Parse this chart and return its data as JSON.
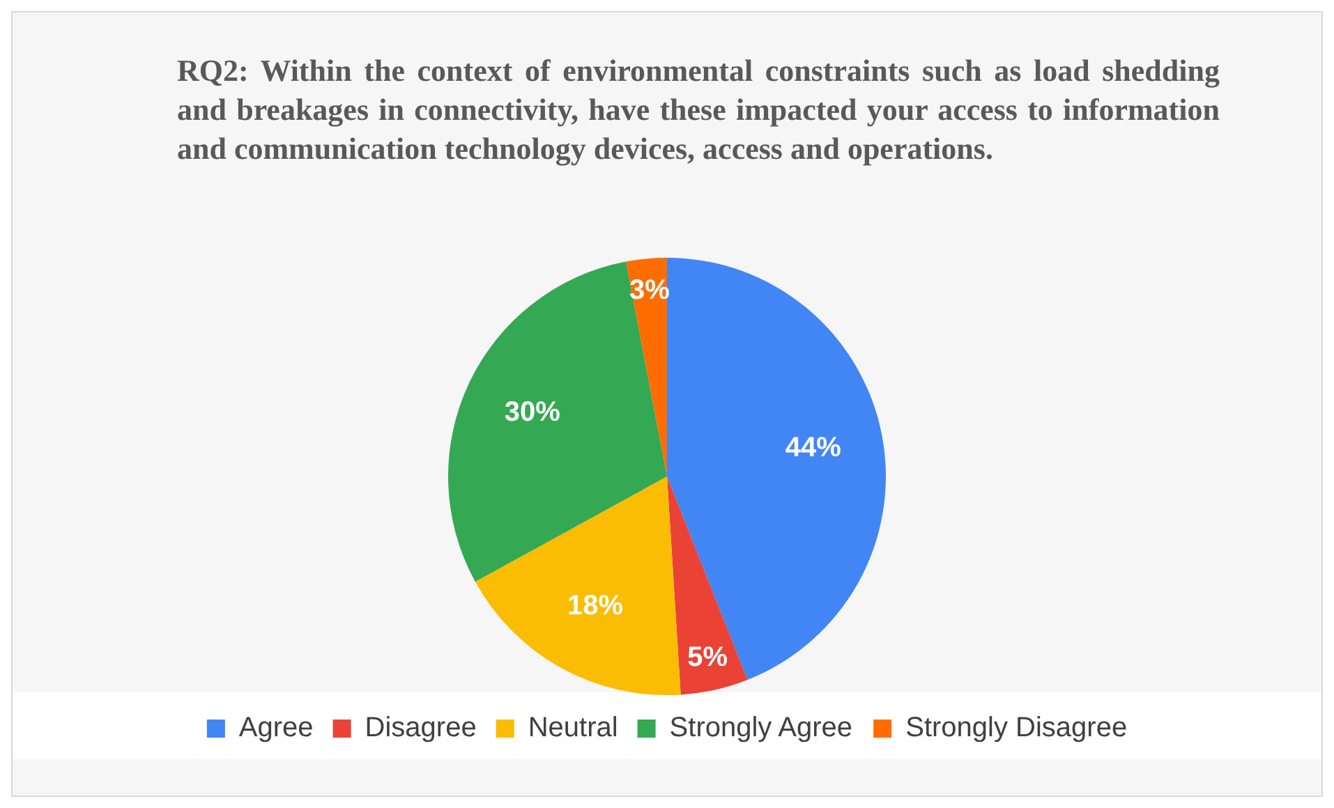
{
  "chart_data": {
    "type": "pie",
    "title": "RQ2: Within the context of environmental constraints such as load shedding and breakages in connectivity, have these impacted your access to information and communication technology devices, access and operations.",
    "categories": [
      "Agree",
      "Disagree",
      "Neutral",
      "Strongly Agree",
      "Strongly Disagree"
    ],
    "values": [
      44,
      5,
      18,
      30,
      3
    ],
    "colors": [
      "#4285f4",
      "#ea4335",
      "#fbbc04",
      "#34a853",
      "#ff6d01"
    ],
    "value_labels": [
      "44%",
      "5%",
      "18%",
      "30%",
      "3%"
    ],
    "legend": "bottom"
  }
}
